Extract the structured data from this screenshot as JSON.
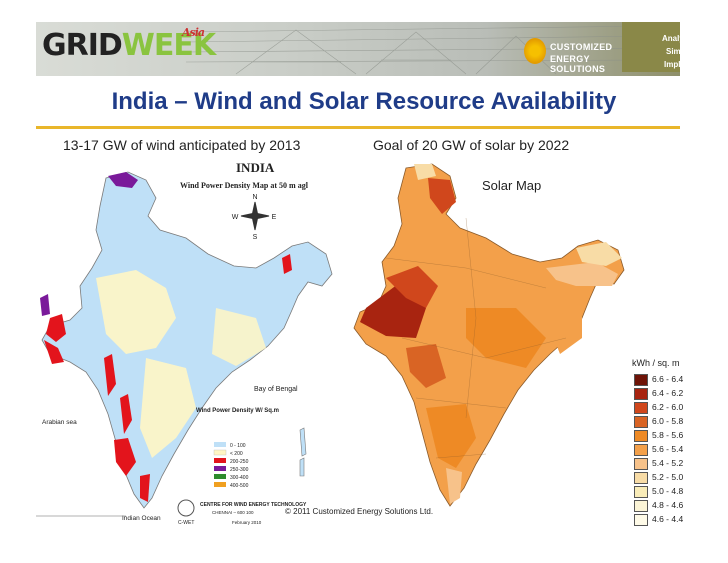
{
  "header": {
    "logo_grid": "GRID",
    "logo_week": "WEEK",
    "logo_asia": "Asia",
    "company_line1": "CUSTOMIZED",
    "company_line2": "ENERGY SOLUTIONS",
    "tagline": [
      "Analyze.",
      "Simplify.",
      "Implement."
    ]
  },
  "slide": {
    "title": "India – Wind and Solar Resource Availability",
    "wind_caption": "13-17 GW of wind anticipated by 2013",
    "solar_caption": "Goal of 20 GW of solar by 2022",
    "solar_map_label": "Solar Map"
  },
  "wind_map": {
    "title": "INDIA",
    "subtitle": "Wind Power Density  Map at 50 m agl",
    "bay_label": "Bay of Bengal",
    "sea_label": "Arabian sea",
    "ocean_label": "Indian Ocean",
    "density_label": "Wind Power Density W/ Sq.m",
    "legend": [
      {
        "label": "0 - 100",
        "color": "#bfe0f7"
      },
      {
        "label": "< 200",
        "color": "#fff6c4"
      },
      {
        "label": "200-250",
        "color": "#e3141c"
      },
      {
        "label": "250-300",
        "color": "#7a1a9a"
      },
      {
        "label": "300-400",
        "color": "#2e8b2e"
      },
      {
        "label": "400-500",
        "color": "#f0a020"
      }
    ],
    "footer_org": "CENTRE FOR WIND ENERGY TECHNOLOGY",
    "footer_city": "CHENNAI – 600 100",
    "footer_date": "February 2010",
    "footer_logo": "C-WET"
  },
  "solar_legend": {
    "title": "kWh / sq. m",
    "items": [
      {
        "label": "6.6 - 6.4",
        "color": "#6e1408"
      },
      {
        "label": "6.4 - 6.2",
        "color": "#a82410"
      },
      {
        "label": "6.2 - 6.0",
        "color": "#d0471c"
      },
      {
        "label": "6.0 - 5.8",
        "color": "#d96424"
      },
      {
        "label": "5.8 - 5.6",
        "color": "#ee8a25"
      },
      {
        "label": "5.6 - 5.4",
        "color": "#f3a04a"
      },
      {
        "label": "5.4 - 5.2",
        "color": "#f7c28a"
      },
      {
        "label": "5.2 - 5.0",
        "color": "#f8dca6"
      },
      {
        "label": "5.0 - 4.8",
        "color": "#f9ecb8"
      },
      {
        "label": "4.8 - 4.6",
        "color": "#fbf4d6"
      },
      {
        "label": "4.6 - 4.4",
        "color": "#fffbe8"
      }
    ]
  },
  "footer": {
    "copyright": "© 2011 Customized Energy Solutions Ltd."
  }
}
